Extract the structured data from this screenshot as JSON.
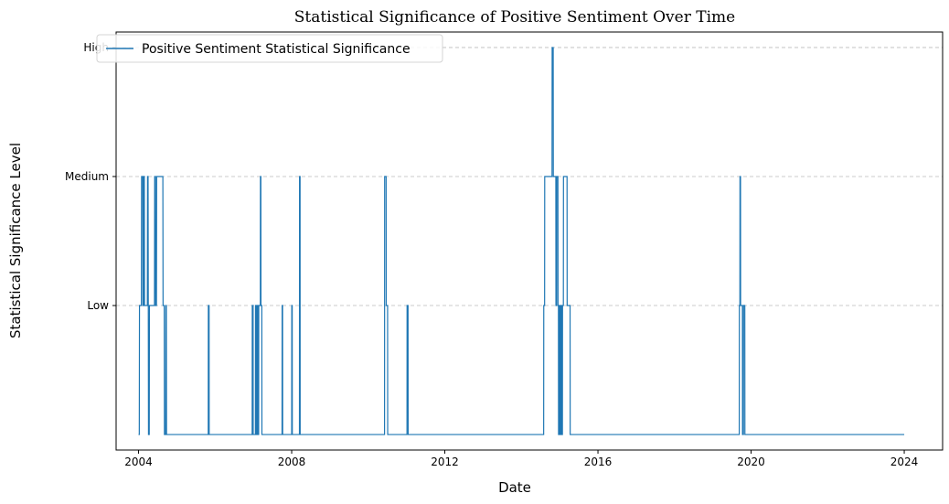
{
  "chart_data": {
    "type": "line",
    "title": "Statistical Significance of Positive Sentiment Over Time",
    "xlabel": "Date",
    "ylabel": "Statistical Significance Level",
    "x_ticks": [
      "2004",
      "2008",
      "2012",
      "2016",
      "2020",
      "2024"
    ],
    "y_ticks": [
      "Low",
      "Medium",
      "High"
    ],
    "y_tick_values": [
      1,
      2,
      3
    ],
    "xlim": [
      "2003-06-01",
      "2025-01-01"
    ],
    "ylim": [
      -0.12,
      3.12
    ],
    "grid": "horizontal dashed",
    "legend_position": "top-left",
    "series": [
      {
        "name": "Positive Sentiment Statistical Significance",
        "color": "#1f77b4",
        "points": [
          [
            "2004-01-01",
            0
          ],
          [
            "2004-01-08",
            0
          ],
          [
            "2004-01-10",
            1
          ],
          [
            "2004-01-28",
            1
          ],
          [
            "2004-01-30",
            2
          ],
          [
            "2004-02-10",
            2
          ],
          [
            "2004-02-12",
            1
          ],
          [
            "2004-02-18",
            1
          ],
          [
            "2004-02-20",
            2
          ],
          [
            "2004-02-25",
            2
          ],
          [
            "2004-02-27",
            1
          ],
          [
            "2004-03-25",
            1
          ],
          [
            "2004-03-27",
            2
          ],
          [
            "2004-04-01",
            2
          ],
          [
            "2004-04-03",
            1
          ],
          [
            "2004-04-05",
            0
          ],
          [
            "2004-04-12",
            0
          ],
          [
            "2004-04-14",
            1
          ],
          [
            "2004-06-01",
            1
          ],
          [
            "2004-06-03",
            2
          ],
          [
            "2004-06-10",
            2
          ],
          [
            "2004-06-12",
            1
          ],
          [
            "2004-06-20",
            1
          ],
          [
            "2004-06-22",
            2
          ],
          [
            "2004-08-20",
            2
          ],
          [
            "2004-08-22",
            1
          ],
          [
            "2004-09-02",
            1
          ],
          [
            "2004-09-04",
            0
          ],
          [
            "2004-09-15",
            0
          ],
          [
            "2004-09-17",
            1
          ],
          [
            "2004-09-22",
            1
          ],
          [
            "2004-09-24",
            0
          ],
          [
            "2005-10-27",
            0
          ],
          [
            "2005-10-28",
            1
          ],
          [
            "2005-11-04",
            1
          ],
          [
            "2005-11-05",
            0
          ],
          [
            "2006-12-20",
            0
          ],
          [
            "2006-12-21",
            1
          ],
          [
            "2006-12-29",
            1
          ],
          [
            "2006-12-30",
            0
          ],
          [
            "2007-01-20",
            0
          ],
          [
            "2007-01-21",
            1
          ],
          [
            "2007-01-27",
            1
          ],
          [
            "2007-01-28",
            0
          ],
          [
            "2007-02-05",
            0
          ],
          [
            "2007-02-06",
            1
          ],
          [
            "2007-02-12",
            1
          ],
          [
            "2007-02-13",
            0
          ],
          [
            "2007-02-20",
            0
          ],
          [
            "2007-02-21",
            1
          ],
          [
            "2007-03-08",
            1
          ],
          [
            "2007-03-09",
            2
          ],
          [
            "2007-03-13",
            2
          ],
          [
            "2007-03-14",
            1
          ],
          [
            "2007-03-22",
            1
          ],
          [
            "2007-03-23",
            0
          ],
          [
            "2007-10-01",
            0
          ],
          [
            "2007-10-02",
            1
          ],
          [
            "2007-10-06",
            1
          ],
          [
            "2007-10-07",
            0
          ],
          [
            "2008-01-01",
            0
          ],
          [
            "2008-01-02",
            1
          ],
          [
            "2008-01-06",
            1
          ],
          [
            "2008-01-07",
            0
          ],
          [
            "2008-03-15",
            0
          ],
          [
            "2008-03-16",
            2
          ],
          [
            "2008-03-21",
            2
          ],
          [
            "2008-03-22",
            0
          ],
          [
            "2010-06-05",
            0
          ],
          [
            "2010-06-06",
            2
          ],
          [
            "2010-06-20",
            2
          ],
          [
            "2010-06-21",
            1
          ],
          [
            "2010-07-04",
            1
          ],
          [
            "2010-07-05",
            0
          ],
          [
            "2011-01-05",
            0
          ],
          [
            "2011-01-06",
            1
          ],
          [
            "2011-01-15",
            1
          ],
          [
            "2011-01-16",
            0
          ],
          [
            "2014-08-01",
            0
          ],
          [
            "2014-08-02",
            1
          ],
          [
            "2014-08-10",
            1
          ],
          [
            "2014-08-11",
            2
          ],
          [
            "2014-10-20",
            2
          ],
          [
            "2014-10-21",
            3
          ],
          [
            "2014-10-31",
            3
          ],
          [
            "2014-11-01",
            2
          ],
          [
            "2014-11-25",
            2
          ],
          [
            "2014-11-26",
            1
          ],
          [
            "2014-12-03",
            1
          ],
          [
            "2014-12-04",
            2
          ],
          [
            "2014-12-15",
            2
          ],
          [
            "2014-12-16",
            1
          ],
          [
            "2014-12-20",
            1
          ],
          [
            "2014-12-21",
            0
          ],
          [
            "2014-12-27",
            0
          ],
          [
            "2014-12-28",
            1
          ],
          [
            "2015-01-05",
            1
          ],
          [
            "2015-01-06",
            0
          ],
          [
            "2015-01-12",
            0
          ],
          [
            "2015-01-13",
            1
          ],
          [
            "2015-01-20",
            1
          ],
          [
            "2015-01-21",
            0
          ],
          [
            "2015-01-27",
            0
          ],
          [
            "2015-01-28",
            1
          ],
          [
            "2015-02-05",
            1
          ],
          [
            "2015-02-06",
            2
          ],
          [
            "2015-03-12",
            2
          ],
          [
            "2015-03-13",
            1
          ],
          [
            "2015-04-10",
            1
          ],
          [
            "2015-04-11",
            0
          ],
          [
            "2019-09-10",
            0
          ],
          [
            "2019-09-11",
            1
          ],
          [
            "2019-09-16",
            1
          ],
          [
            "2019-09-17",
            2
          ],
          [
            "2019-09-22",
            2
          ],
          [
            "2019-09-23",
            1
          ],
          [
            "2019-10-10",
            1
          ],
          [
            "2019-10-11",
            0
          ],
          [
            "2019-10-20",
            0
          ],
          [
            "2019-10-21",
            1
          ],
          [
            "2019-11-02",
            1
          ],
          [
            "2019-11-03",
            0
          ],
          [
            "2024-01-01",
            0
          ]
        ]
      }
    ]
  }
}
